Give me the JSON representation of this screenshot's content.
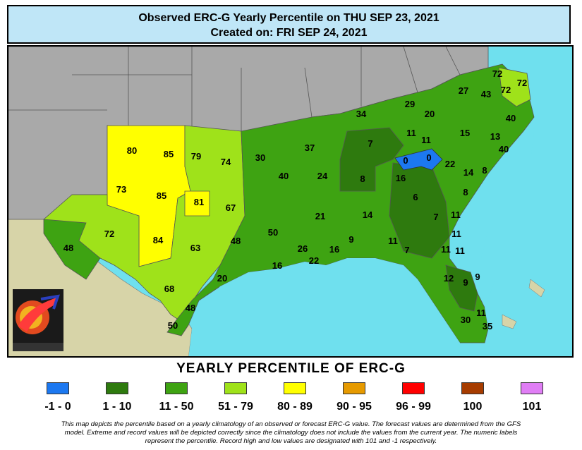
{
  "header": {
    "title_line1": "Observed ERC-G Yearly Percentile on THU SEP 23, 2021",
    "title_line2": "Created on: FRI SEP 24, 2021"
  },
  "map": {
    "region_values": [
      "80",
      "85",
      "79",
      "74",
      "73",
      "85",
      "81",
      "67",
      "72",
      "84",
      "63",
      "48",
      "48",
      "68",
      "48",
      "20",
      "50",
      "30",
      "40",
      "50",
      "16",
      "37",
      "24",
      "21",
      "26",
      "22",
      "16",
      "34",
      "7",
      "8",
      "14",
      "9",
      "11",
      "7",
      "29",
      "20",
      "11",
      "11",
      "0",
      "0",
      "16",
      "22",
      "6",
      "7",
      "27",
      "43",
      "72",
      "72",
      "72",
      "40",
      "15",
      "13",
      "40",
      "14",
      "8",
      "8",
      "11",
      "11",
      "11",
      "11",
      "12",
      "9",
      "9",
      "11",
      "30",
      "35"
    ],
    "colors": {
      "ocean": "#6fe0ee",
      "outside_us": "#d7d4a8",
      "no_data_states": "#a9a9a9",
      "class_-1_0": "#1c78f0",
      "class_1_10": "#2e7a0e",
      "class_11_50": "#3ea312",
      "class_51_79": "#9fe21a",
      "class_80_89": "#ffff00"
    }
  },
  "legend": {
    "title": "YEARLY PERCENTILE OF ERC-G",
    "items": [
      {
        "label": "-1 - 0",
        "color": "#1c78f0"
      },
      {
        "label": "1 - 10",
        "color": "#2e7a0e"
      },
      {
        "label": "11 - 50",
        "color": "#3ea312"
      },
      {
        "label": "51 - 79",
        "color": "#9fe21a"
      },
      {
        "label": "80 - 89",
        "color": "#ffff00"
      },
      {
        "label": "90 - 95",
        "color": "#e69a00"
      },
      {
        "label": "96 - 99",
        "color": "#ff0000"
      },
      {
        "label": "100",
        "color": "#a63c00"
      },
      {
        "label": "101",
        "color": "#e07ef5"
      }
    ]
  },
  "footnote": {
    "line1": "This map depicts the percentile based on a yearly climatology of an observed or forecast ERC-G value. The forecast values are determined from the GFS",
    "line2": "model. Extreme and record values will be depicted correctly since the climatology does not include the values from the current year. The numeric labels",
    "line3": "represent the percentile. Record high and low values are designated with 101 and -1 respectively."
  }
}
